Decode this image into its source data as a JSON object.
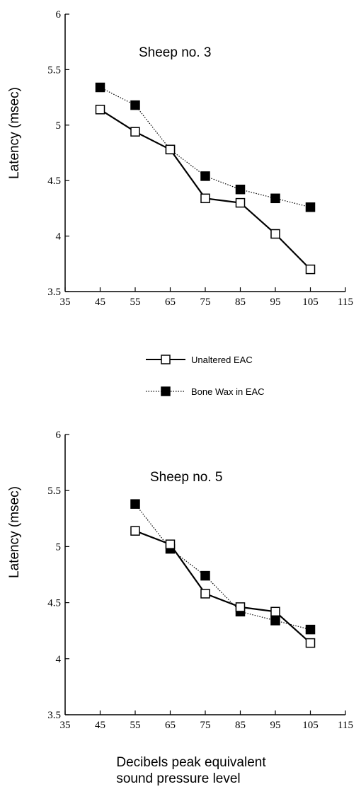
{
  "chart_data": [
    {
      "type": "line",
      "title": "Sheep no. 3",
      "ylabel": "Latency (msec)",
      "xlim": [
        35,
        115
      ],
      "ylim": [
        3.5,
        6
      ],
      "x_ticks": [
        "35",
        "45",
        "55",
        "65",
        "75",
        "85",
        "95",
        "105",
        "115"
      ],
      "y_ticks": [
        "3.5",
        "4",
        "4.5",
        "5",
        "5.5",
        "6"
      ],
      "series": [
        {
          "name": "Unaltered EAC",
          "x": [
            45,
            55,
            65,
            75,
            85,
            95,
            105
          ],
          "y": [
            5.14,
            4.94,
            4.78,
            4.34,
            4.3,
            4.02,
            3.7
          ]
        },
        {
          "name": "Bone Wax in EAC",
          "x": [
            45,
            55,
            65,
            75,
            85,
            95,
            105
          ],
          "y": [
            5.34,
            5.18,
            4.78,
            4.54,
            4.42,
            4.34,
            4.26
          ]
        }
      ]
    },
    {
      "type": "line",
      "title": "Sheep no. 5",
      "ylabel": "Latency (msec)",
      "xlim": [
        35,
        115
      ],
      "ylim": [
        3.5,
        6
      ],
      "x_ticks": [
        "35",
        "45",
        "55",
        "65",
        "75",
        "85",
        "95",
        "105",
        "115"
      ],
      "y_ticks": [
        "3.5",
        "4",
        "4.5",
        "5",
        "5.5",
        "6"
      ],
      "series": [
        {
          "name": "Unaltered EAC",
          "x": [
            55,
            65,
            75,
            85,
            95,
            105
          ],
          "y": [
            5.14,
            5.02,
            4.58,
            4.46,
            4.42,
            4.14
          ]
        },
        {
          "name": "Bone Wax in EAC",
          "x": [
            55,
            65,
            75,
            85,
            95,
            105
          ],
          "y": [
            5.38,
            4.98,
            4.74,
            4.42,
            4.34,
            4.26
          ]
        }
      ]
    }
  ],
  "legend": {
    "placement": "between-panels",
    "items": [
      {
        "label": "Unaltered EAC",
        "marker": "open-square",
        "line": "solid"
      },
      {
        "label": "Bone Wax in EAC",
        "marker": "filled-square",
        "line": "dotted"
      }
    ]
  },
  "shared_xlabel": [
    "Decibels peak equivalent",
    "sound pressure level"
  ]
}
